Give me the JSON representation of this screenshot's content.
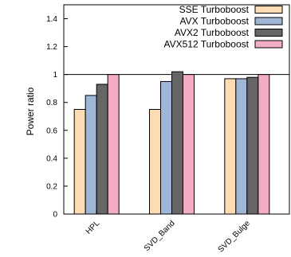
{
  "chart_data": {
    "type": "bar",
    "ylabel": "Power ratio",
    "xlabel": "",
    "ylim": [
      0,
      1.5
    ],
    "yticks": [
      0,
      0.2,
      0.4,
      0.6,
      0.8,
      1,
      1.2,
      1.4
    ],
    "reference_line": 1,
    "categories": [
      "HPL",
      "SVD_Band",
      "SVD_Bulge"
    ],
    "legend_position": "top-right",
    "series": [
      {
        "name": "SSE Turboboost",
        "color": "#fddcb3",
        "values": [
          0.75,
          0.75,
          0.97
        ]
      },
      {
        "name": "AVX Turboboost",
        "color": "#9fb6d6",
        "values": [
          0.85,
          0.95,
          0.97
        ]
      },
      {
        "name": "AVX2 Turboboost",
        "color": "#666666",
        "values": [
          0.93,
          1.02,
          0.98
        ]
      },
      {
        "name": "AVX512 Turboboost",
        "color": "#f2adc4",
        "values": [
          1.0,
          1.0,
          1.0
        ]
      }
    ]
  }
}
